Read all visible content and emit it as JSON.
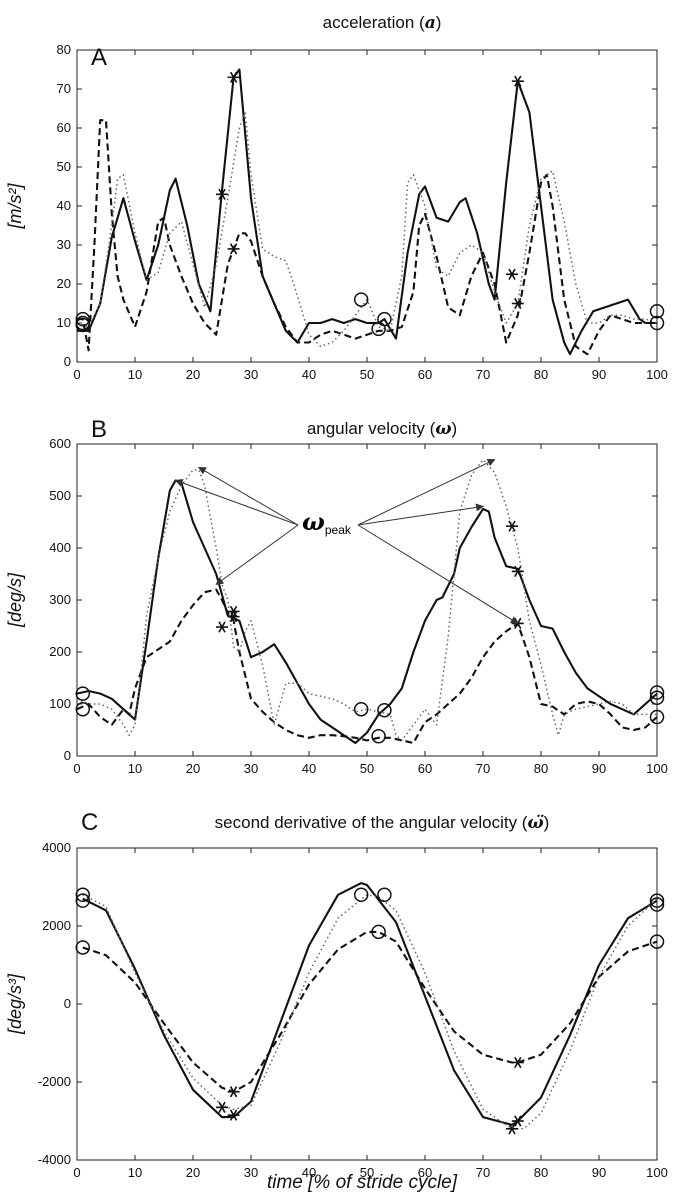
{
  "chart_data": [
    {
      "type": "line",
      "panel": "A",
      "title": "acceleration (",
      "title_symbol": "a",
      "title_end": ")",
      "ylabel": "[m/s²]",
      "xlabel": "",
      "xlim": [
        0,
        100
      ],
      "ylim": [
        0,
        80
      ],
      "xticks": [
        0,
        10,
        20,
        30,
        40,
        50,
        60,
        70,
        80,
        90,
        100
      ],
      "yticks": [
        0,
        10,
        20,
        30,
        40,
        50,
        60,
        70,
        80
      ],
      "series": [
        {
          "style": "solid",
          "x": [
            0,
            2,
            4,
            6,
            8,
            10,
            12,
            14,
            16,
            17,
            19,
            21,
            23,
            25,
            27,
            28,
            30,
            32,
            34,
            36,
            38,
            40,
            42,
            44,
            46,
            48,
            50,
            52,
            53,
            55,
            57,
            59,
            60,
            62,
            64,
            66,
            67,
            69,
            71,
            72,
            74,
            76,
            78,
            80,
            82,
            84,
            85,
            87,
            89,
            91,
            93,
            95,
            97,
            98,
            100
          ],
          "y": [
            8,
            8,
            15,
            32,
            42,
            31,
            21,
            30,
            44,
            47,
            35,
            20,
            13,
            44,
            73,
            75,
            42,
            22,
            15,
            8,
            5,
            10,
            10,
            11,
            10,
            11,
            10,
            10,
            11,
            6,
            28,
            43,
            45,
            37,
            36,
            41,
            42,
            33,
            20,
            16,
            46,
            72,
            64,
            40,
            16,
            5,
            2,
            8,
            13,
            14,
            15,
            16,
            11,
            10,
            10
          ]
        },
        {
          "style": "dashed",
          "x": [
            0,
            1,
            2,
            3,
            4,
            5,
            6,
            7,
            8,
            10,
            12,
            14,
            15,
            16,
            18,
            20,
            22,
            24,
            26,
            28,
            29,
            30,
            32,
            34,
            36,
            38,
            40,
            42,
            44,
            46,
            48,
            50,
            52,
            54,
            56,
            58,
            59,
            60,
            62,
            64,
            66,
            68,
            70,
            72,
            74,
            76,
            78,
            80,
            81,
            82,
            84,
            86,
            88,
            90,
            92,
            94,
            96,
            98,
            100
          ],
          "y": [
            11,
            11,
            3,
            30,
            62,
            62,
            38,
            22,
            16,
            9,
            18,
            36,
            37,
            30,
            22,
            15,
            10,
            7,
            25,
            33,
            33,
            31,
            22,
            15,
            9,
            5,
            5,
            7,
            8,
            7,
            6,
            7,
            8,
            8,
            9,
            18,
            35,
            38,
            27,
            14,
            12,
            22,
            28,
            20,
            5,
            12,
            28,
            46,
            48,
            40,
            16,
            4,
            2,
            8,
            12,
            11,
            10,
            10,
            10
          ]
        },
        {
          "style": "dotted",
          "x": [
            0,
            2,
            4,
            6,
            7,
            8,
            10,
            12,
            14,
            16,
            18,
            20,
            22,
            24,
            26,
            28,
            29,
            30,
            32,
            34,
            36,
            38,
            40,
            42,
            44,
            46,
            48,
            50,
            52,
            54,
            56,
            57,
            58,
            60,
            62,
            64,
            66,
            68,
            70,
            72,
            74,
            76,
            78,
            80,
            82,
            84,
            86,
            88,
            90,
            92,
            94,
            96,
            98,
            100
          ],
          "y": [
            10,
            9,
            15,
            35,
            47,
            48,
            33,
            21,
            23,
            33,
            36,
            25,
            14,
            25,
            42,
            60,
            64,
            48,
            29,
            27,
            26,
            17,
            7,
            4,
            5,
            8,
            12,
            16,
            9,
            8,
            22,
            46,
            48,
            40,
            24,
            22,
            28,
            30,
            28,
            18,
            10,
            15,
            35,
            47,
            49,
            36,
            20,
            10,
            10,
            12,
            12,
            11,
            11,
            10
          ]
        }
      ],
      "circle_markers": [
        {
          "x": 1,
          "y": 11
        },
        {
          "x": 1,
          "y": 10
        },
        {
          "x": 1,
          "y": 9.5
        },
        {
          "x": 49,
          "y": 16
        },
        {
          "x": 52,
          "y": 8.5
        },
        {
          "x": 53,
          "y": 11
        },
        {
          "x": 100,
          "y": 13
        },
        {
          "x": 100,
          "y": 10
        }
      ],
      "star_markers": [
        {
          "x": 25,
          "y": 43
        },
        {
          "x": 27,
          "y": 73
        },
        {
          "x": 27,
          "y": 29
        },
        {
          "x": 75,
          "y": 22.5
        },
        {
          "x": 76,
          "y": 72
        },
        {
          "x": 76,
          "y": 15
        }
      ]
    },
    {
      "type": "line",
      "panel": "B",
      "title": "angular velocity (",
      "title_symbol": "ω",
      "title_end": ")",
      "ylabel": "[deg/s]",
      "xlabel": "",
      "xlim": [
        0,
        100
      ],
      "ylim": [
        0,
        600
      ],
      "xticks": [
        0,
        10,
        20,
        30,
        40,
        50,
        60,
        70,
        80,
        90,
        100
      ],
      "yticks": [
        0,
        100,
        200,
        300,
        400,
        500,
        600
      ],
      "annotation": {
        "symbol": "ω",
        "subscript": "peak"
      },
      "series": [
        {
          "style": "solid",
          "x": [
            0,
            2,
            4,
            6,
            8,
            10,
            12,
            14,
            16,
            17,
            18,
            20,
            22,
            24,
            26,
            28,
            30,
            32,
            34,
            36,
            38,
            40,
            42,
            44,
            46,
            48,
            50,
            52,
            54,
            56,
            58,
            60,
            62,
            63,
            65,
            66,
            68,
            70,
            71,
            72,
            74,
            76,
            78,
            80,
            82,
            84,
            86,
            88,
            90,
            92,
            94,
            96,
            98,
            100
          ],
          "y": [
            120,
            125,
            120,
            110,
            90,
            70,
            220,
            380,
            510,
            530,
            525,
            450,
            400,
            350,
            270,
            260,
            190,
            200,
            215,
            180,
            140,
            100,
            70,
            55,
            40,
            25,
            45,
            80,
            100,
            130,
            200,
            260,
            300,
            305,
            350,
            400,
            440,
            475,
            470,
            420,
            365,
            360,
            300,
            250,
            245,
            200,
            160,
            130,
            115,
            100,
            90,
            80,
            100,
            120
          ]
        },
        {
          "style": "dashed",
          "x": [
            0,
            2,
            4,
            6,
            8,
            9,
            10,
            12,
            14,
            16,
            18,
            20,
            22,
            24,
            25,
            26,
            27,
            28,
            30,
            32,
            34,
            36,
            38,
            40,
            42,
            44,
            46,
            48,
            50,
            52,
            54,
            56,
            58,
            60,
            62,
            64,
            66,
            68,
            70,
            72,
            74,
            76,
            78,
            80,
            82,
            84,
            86,
            88,
            90,
            92,
            94,
            96,
            98,
            100
          ],
          "y": [
            90,
            100,
            75,
            60,
            90,
            80,
            130,
            190,
            205,
            220,
            260,
            290,
            315,
            320,
            300,
            275,
            260,
            200,
            110,
            85,
            65,
            50,
            40,
            35,
            40,
            40,
            38,
            35,
            30,
            35,
            35,
            30,
            25,
            65,
            80,
            100,
            120,
            150,
            190,
            220,
            240,
            255,
            190,
            100,
            95,
            80,
            100,
            105,
            100,
            80,
            55,
            50,
            55,
            75
          ]
        },
        {
          "style": "dotted",
          "x": [
            0,
            2,
            4,
            6,
            8,
            9,
            10,
            11,
            12,
            14,
            16,
            18,
            20,
            21,
            22,
            24,
            25,
            26,
            27,
            28,
            29,
            30,
            32,
            34,
            36,
            38,
            40,
            42,
            44,
            46,
            48,
            50,
            52,
            54,
            55,
            56,
            58,
            60,
            62,
            64,
            66,
            68,
            70,
            72,
            74,
            76,
            78,
            80,
            82,
            83,
            84,
            86,
            88,
            90,
            92,
            94,
            96,
            98,
            100
          ],
          "y": [
            110,
            100,
            100,
            90,
            60,
            40,
            60,
            160,
            270,
            380,
            470,
            520,
            550,
            550,
            520,
            400,
            330,
            300,
            210,
            200,
            240,
            260,
            175,
            60,
            140,
            140,
            120,
            115,
            110,
            100,
            85,
            90,
            85,
            80,
            40,
            30,
            60,
            90,
            60,
            230,
            470,
            540,
            570,
            545,
            480,
            400,
            260,
            175,
            80,
            40,
            80,
            90,
            95,
            100,
            105,
            100,
            80,
            80,
            80
          ]
        }
      ],
      "circle_markers": [
        {
          "x": 1,
          "y": 120
        },
        {
          "x": 1,
          "y": 90
        },
        {
          "x": 49,
          "y": 90
        },
        {
          "x": 52,
          "y": 38
        },
        {
          "x": 53,
          "y": 88
        },
        {
          "x": 100,
          "y": 122
        },
        {
          "x": 100,
          "y": 112
        },
        {
          "x": 100,
          "y": 75
        }
      ],
      "star_markers": [
        {
          "x": 25,
          "y": 248
        },
        {
          "x": 27,
          "y": 278
        },
        {
          "x": 27,
          "y": 268
        },
        {
          "x": 75,
          "y": 442
        },
        {
          "x": 76,
          "y": 355
        },
        {
          "x": 76,
          "y": 255
        }
      ]
    },
    {
      "type": "line",
      "panel": "C",
      "title": "second derivative of the angular velocity (",
      "title_symbol": "ω̈",
      "title_end": ")",
      "ylabel": "[deg/s³]",
      "xlabel": "time [% of stride cycle]",
      "xlim": [
        0,
        100
      ],
      "ylim": [
        -4000,
        4000
      ],
      "xticks": [
        0,
        10,
        20,
        30,
        40,
        50,
        60,
        70,
        80,
        90,
        100
      ],
      "yticks": [
        -4000,
        -2000,
        0,
        2000,
        4000
      ],
      "series": [
        {
          "style": "solid",
          "x": [
            1,
            5,
            10,
            15,
            20,
            25,
            27,
            30,
            35,
            40,
            45,
            49,
            50,
            55,
            60,
            65,
            70,
            75,
            76,
            80,
            85,
            90,
            95,
            100
          ],
          "y": [
            2700,
            2400,
            900,
            -800,
            -2200,
            -2900,
            -2900,
            -2500,
            -500,
            1500,
            2800,
            3100,
            3050,
            2100,
            200,
            -1700,
            -2900,
            -3100,
            -3000,
            -2400,
            -800,
            1000,
            2200,
            2650
          ]
        },
        {
          "style": "dashed",
          "x": [
            1,
            5,
            10,
            15,
            20,
            25,
            27,
            30,
            35,
            40,
            45,
            50,
            52,
            55,
            60,
            65,
            70,
            75,
            76,
            80,
            85,
            90,
            95,
            100
          ],
          "y": [
            1450,
            1250,
            550,
            -500,
            -1500,
            -2150,
            -2250,
            -2000,
            -800,
            500,
            1400,
            1850,
            1850,
            1600,
            400,
            -700,
            -1300,
            -1500,
            -1500,
            -1300,
            -500,
            700,
            1350,
            1600
          ]
        },
        {
          "style": "dotted",
          "x": [
            1,
            5,
            10,
            15,
            20,
            25,
            27,
            30,
            35,
            40,
            45,
            50,
            52,
            55,
            60,
            65,
            70,
            75,
            77,
            80,
            85,
            90,
            95,
            100
          ],
          "y": [
            2800,
            2500,
            800,
            -700,
            -1900,
            -2600,
            -2700,
            -2600,
            -1000,
            800,
            2200,
            2800,
            2750,
            2400,
            800,
            -1200,
            -2700,
            -3200,
            -3200,
            -2800,
            -1200,
            700,
            2000,
            2700
          ]
        }
      ],
      "circle_markers": [
        {
          "x": 1,
          "y": 2800
        },
        {
          "x": 1,
          "y": 2650
        },
        {
          "x": 1,
          "y": 1450
        },
        {
          "x": 49,
          "y": 2800
        },
        {
          "x": 52,
          "y": 1850
        },
        {
          "x": 53,
          "y": 2800
        },
        {
          "x": 100,
          "y": 2650
        },
        {
          "x": 100,
          "y": 2550
        },
        {
          "x": 100,
          "y": 1600
        }
      ],
      "star_markers": [
        {
          "x": 25,
          "y": -2650
        },
        {
          "x": 27,
          "y": -2250
        },
        {
          "x": 27,
          "y": -2850
        },
        {
          "x": 75,
          "y": -3200
        },
        {
          "x": 76,
          "y": -3000
        },
        {
          "x": 76,
          "y": -1500
        }
      ]
    }
  ]
}
